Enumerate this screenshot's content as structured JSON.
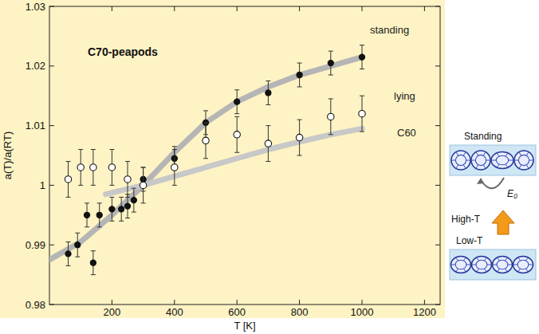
{
  "chart_data": {
    "type": "scatter",
    "title": "C70-peapods",
    "x_label": "T [K]",
    "y_label": "a(T)/a(RT)",
    "xlim": [
      0,
      1250
    ],
    "xticks": [
      200,
      400,
      600,
      800,
      1000,
      1200
    ],
    "ylim": [
      0.98,
      1.03
    ],
    "yticks": [
      0.98,
      0.99,
      1,
      1.01,
      1.02,
      1.03
    ],
    "grid": false,
    "series": [
      {
        "name": "standing",
        "type": "scatter",
        "marker": "filled",
        "color": "#111111",
        "x": [
          60,
          90,
          120,
          140,
          160,
          200,
          230,
          250,
          270,
          300,
          400,
          500,
          600,
          700,
          800,
          900,
          1000
        ],
        "values": [
          0.9885,
          0.99,
          0.995,
          0.987,
          0.995,
          0.996,
          0.996,
          0.9965,
          0.9975,
          1.001,
          1.0045,
          1.0105,
          1.014,
          1.0155,
          1.0185,
          1.0205,
          1.0215
        ],
        "errors": [
          0.002,
          0.002,
          0.002,
          0.002,
          0.002,
          0.002,
          0.002,
          0.002,
          0.002,
          0.002,
          0.002,
          0.002,
          0.002,
          0.002,
          0.002,
          0.002,
          0.002
        ]
      },
      {
        "name": "lying",
        "type": "scatter",
        "marker": "open",
        "color": "#111111",
        "x": [
          60,
          100,
          140,
          200,
          250,
          300,
          400,
          500,
          600,
          700,
          800,
          900,
          1000
        ],
        "values": [
          1.001,
          1.003,
          1.003,
          1.003,
          1.001,
          1.0,
          1.003,
          1.0075,
          1.0085,
          1.007,
          1.008,
          1.0115,
          1.012
        ],
        "errors": [
          0.003,
          0.003,
          0.003,
          0.003,
          0.003,
          0.003,
          0.003,
          0.003,
          0.003,
          0.003,
          0.003,
          0.003,
          0.003
        ]
      },
      {
        "type": "line",
        "color": "#b5b5b5",
        "x": [
          0,
          100,
          200,
          300,
          400,
          500,
          600,
          700,
          800,
          900,
          1000
        ],
        "values": [
          0.9875,
          0.9905,
          0.995,
          1.0,
          1.0055,
          1.0105,
          1.014,
          1.0165,
          1.0185,
          1.02,
          1.0215
        ]
      },
      {
        "name": "C60",
        "type": "line",
        "color": "#c8c8c8",
        "x": [
          180,
          300,
          400,
          500,
          600,
          700,
          800,
          900,
          1000
        ],
        "values": [
          0.9985,
          1.0,
          1.0015,
          1.003,
          1.0045,
          1.006,
          1.0073,
          1.0085,
          1.0095
        ]
      }
    ]
  },
  "diagram": {
    "standing_label": "Standing",
    "high_label": "High-T",
    "low_label": "Low-T",
    "energy_label": "E₀"
  }
}
